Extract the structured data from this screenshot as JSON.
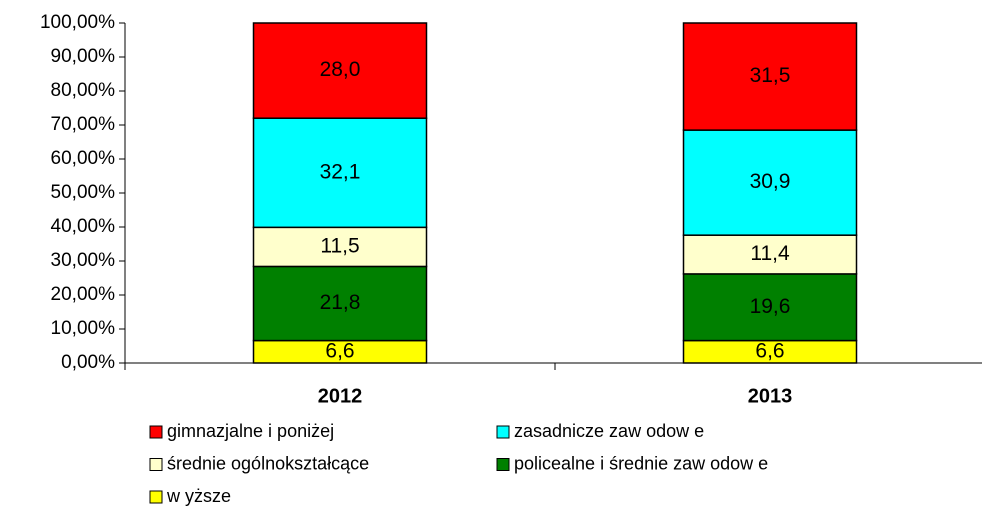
{
  "chart_data": {
    "type": "stacked_bar",
    "categories": [
      "2012",
      "2013"
    ],
    "series": [
      {
        "name": "gimnazjalne i poniżej",
        "color": "#ff0000",
        "values": [
          28.0,
          31.5
        ],
        "value_labels": [
          "28,0",
          "31,5"
        ]
      },
      {
        "name": "zasadnicze zaw odow e",
        "color": "#00ffff",
        "values": [
          32.1,
          30.9
        ],
        "value_labels": [
          "32,1",
          "30,9"
        ]
      },
      {
        "name": "średnie ogólnokształcące",
        "color": "#ffffcc",
        "values": [
          11.5,
          11.4
        ],
        "value_labels": [
          "11,5",
          "11,4"
        ]
      },
      {
        "name": "policealne i średnie zaw odow e",
        "color": "#008000",
        "values": [
          21.8,
          19.6
        ],
        "value_labels": [
          "21,8",
          "19,6"
        ]
      },
      {
        "name": "w yższe",
        "color": "#ffff00",
        "values": [
          6.6,
          6.6
        ],
        "value_labels": [
          "6,6",
          "6,6"
        ]
      }
    ],
    "ylim": [
      0,
      100
    ],
    "yticks": [
      {
        "value": 0,
        "label": "0,00%"
      },
      {
        "value": 10,
        "label": "10,00%"
      },
      {
        "value": 20,
        "label": "20,00%"
      },
      {
        "value": 30,
        "label": "30,00%"
      },
      {
        "value": 40,
        "label": "40,00%"
      },
      {
        "value": 50,
        "label": "50,00%"
      },
      {
        "value": 60,
        "label": "60,00%"
      },
      {
        "value": 70,
        "label": "70,00%"
      },
      {
        "value": 80,
        "label": "80,00%"
      },
      {
        "value": 90,
        "label": "90,00%"
      },
      {
        "value": 100,
        "label": "100,00%"
      }
    ]
  }
}
